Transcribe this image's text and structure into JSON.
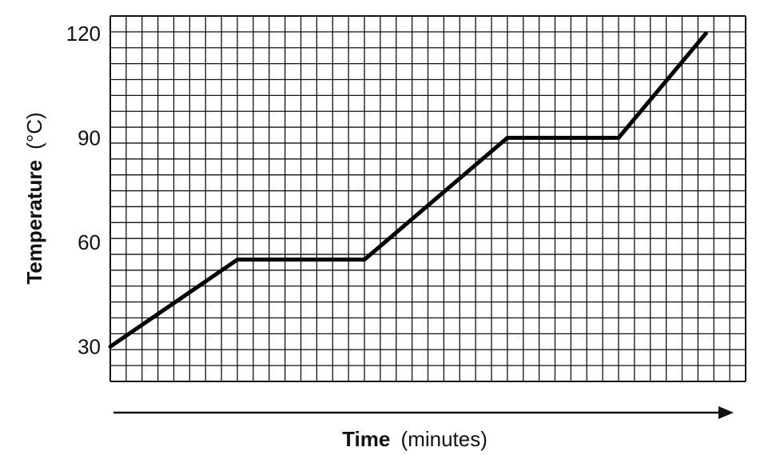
{
  "chart_data": {
    "type": "line",
    "xlabel": "Time",
    "xlabel_unit": "(minutes)",
    "ylabel": "Temperature",
    "ylabel_unit": "(°C)",
    "ylim": [
      20,
      125
    ],
    "yticks": [
      "30",
      "60",
      "90",
      "120"
    ],
    "ytick_values": [
      30,
      60,
      90,
      120
    ],
    "x_tick_labels": [],
    "grid": true,
    "legend": "none",
    "series": [
      {
        "x": [
          0,
          8,
          16,
          25,
          32,
          37.5
        ],
        "values": [
          30,
          55,
          55,
          90,
          90,
          120
        ]
      }
    ]
  }
}
